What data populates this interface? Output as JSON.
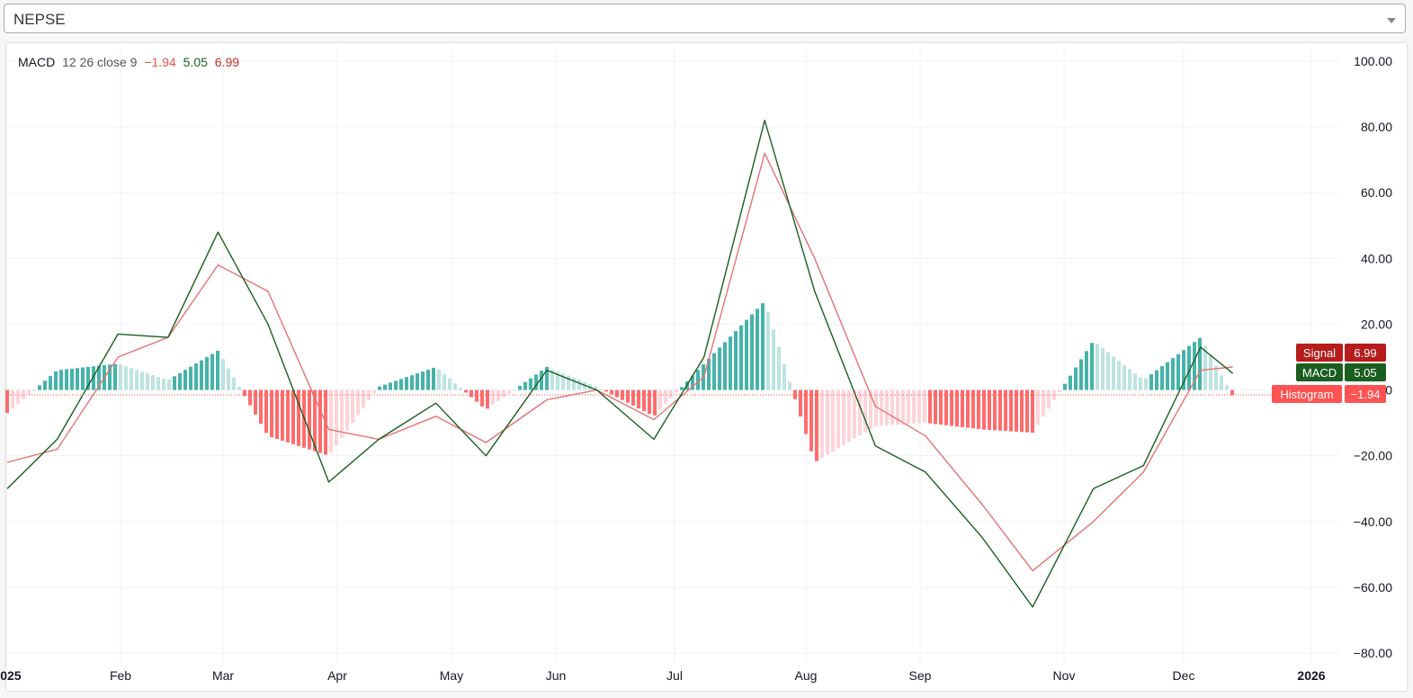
{
  "selector": {
    "value": "NEPSE",
    "icon": "chevron-down-icon"
  },
  "legend": {
    "name": "MACD",
    "params": "12 26 close 9",
    "histogram_value": "−1.94",
    "macd_value": "5.05",
    "signal_value": "6.99"
  },
  "colors": {
    "macd_line": "#1a5e20",
    "signal_line": "#e57373",
    "hist_pos_strong": "#26a69a",
    "hist_pos_weak": "#b2dfdb",
    "hist_neg_strong": "#ff5252",
    "hist_neg_weak": "#ffcdd2",
    "signal_tag": "#b71c1c",
    "macd_tag": "#1b5e20",
    "hist_tag": "#ff5252"
  },
  "price_tags": [
    {
      "label": "Signal",
      "value": "6.99"
    },
    {
      "label": "MACD",
      "value": "5.05"
    },
    {
      "label": "Histogram",
      "value": "−1.94"
    }
  ],
  "chart_data": {
    "type": "line",
    "title": "",
    "xlabel": "",
    "ylabel": "",
    "ylim": [
      -80,
      100
    ],
    "grid": true,
    "y_ticks": [
      "100.00",
      "80.00",
      "60.00",
      "40.00",
      "20.00",
      "0.00",
      "−20.00",
      "−40.00",
      "−60.00",
      "−80.00"
    ],
    "x_ticks": [
      "2025",
      "Feb",
      "Mar",
      "Apr",
      "May",
      "Jun",
      "Jul",
      "Aug",
      "Sep",
      "Nov",
      "Dec",
      "2026"
    ],
    "x": [
      "2025-01-01",
      "2025-01-15",
      "2025-02-01",
      "2025-02-15",
      "2025-03-01",
      "2025-03-15",
      "2025-04-01",
      "2025-04-15",
      "2025-05-01",
      "2025-05-15",
      "2025-06-01",
      "2025-06-15",
      "2025-07-01",
      "2025-07-15",
      "2025-08-01",
      "2025-08-15",
      "2025-09-01",
      "2025-09-15",
      "2025-10-01",
      "2025-10-15",
      "2025-11-01",
      "2025-11-15",
      "2025-12-01",
      "2025-12-10"
    ],
    "series": [
      {
        "name": "MACD",
        "values": [
          -30,
          -15,
          17,
          16,
          48,
          20,
          -28,
          -15,
          -4,
          -20,
          6,
          0,
          -15,
          10,
          82,
          30,
          -17,
          -25,
          -45,
          -66,
          -30,
          -23,
          13,
          5.05
        ]
      },
      {
        "name": "Signal",
        "values": [
          -22,
          -18,
          10,
          16,
          38,
          30,
          -12,
          -15,
          -8,
          -16,
          -3,
          0,
          -9,
          4,
          72,
          40,
          -5,
          -14,
          -35,
          -55,
          -40,
          -25,
          6,
          6.99
        ]
      },
      {
        "name": "Histogram",
        "values": [
          -7,
          6,
          8,
          3,
          12,
          -14,
          -20,
          1,
          7,
          -6,
          7,
          1,
          -8,
          8,
          27,
          -22,
          -11,
          -10,
          -12,
          -13,
          15,
          3,
          16,
          -1.94
        ]
      }
    ]
  }
}
